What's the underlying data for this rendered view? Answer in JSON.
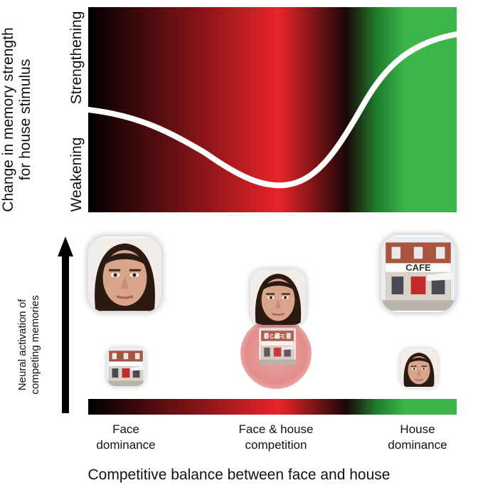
{
  "y_axis_label_line1": "Change in memory strength",
  "y_axis_label_line2": "for house stimulus",
  "y_tick_top": "Strengthening",
  "y_tick_bottom": "Weakening",
  "activation_label_line1": "Neural activation of",
  "activation_label_line2": "competing memories",
  "x_categories": [
    {
      "line1": "Face",
      "line2": "dominance"
    },
    {
      "line1": "Face & house",
      "line2": "competition"
    },
    {
      "line1": "House",
      "line2": "dominance"
    }
  ],
  "x_axis_title": "Competitive balance between face and house",
  "cafe_sign": "CAFE",
  "colors": {
    "dark": "#000000",
    "red": "#e8242a",
    "green": "#3cb54a",
    "curve": "#ffffff",
    "skin": "#d9a58a",
    "hair": "#2a1a12"
  },
  "chart_data": {
    "type": "line",
    "xlabel": "Competitive balance between face and house",
    "ylabel": "Change in memory strength for house stimulus",
    "x_categories": [
      "Face dominance",
      "Face & house competition",
      "House dominance"
    ],
    "curve_shape": "nonmonotonic U-shape",
    "legend": "none",
    "grid": false
  }
}
